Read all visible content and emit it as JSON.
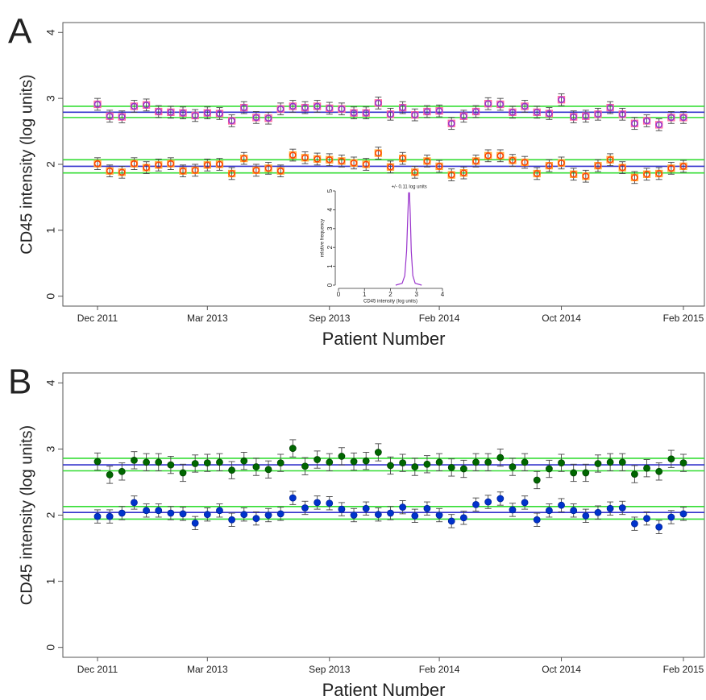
{
  "chart_data": [
    {
      "type": "errorbar",
      "panel_label": "A",
      "x_label": "Patient Number",
      "y_label": "CD45 intensity (log units)",
      "categories": [
        "Dec 2011",
        null,
        null,
        null,
        null,
        null,
        null,
        null,
        null,
        "Mar 2013",
        null,
        null,
        null,
        null,
        null,
        null,
        null,
        null,
        null,
        "Sep 2013",
        null,
        null,
        null,
        null,
        null,
        null,
        null,
        null,
        "Feb 2014",
        null,
        null,
        null,
        null,
        null,
        null,
        null,
        null,
        null,
        "Oct 2014",
        null,
        null,
        null,
        null,
        null,
        null,
        null,
        null,
        null,
        "Feb 2015"
      ],
      "ylim": [
        -0.15,
        4.15
      ],
      "yticks": [
        0,
        1,
        2,
        3,
        4
      ],
      "series": [
        {
          "color": "#9933cc",
          "edge_color": "#ff6699",
          "error": 0.09,
          "values": [
            2.91,
            2.73,
            2.72,
            2.88,
            2.9,
            2.8,
            2.79,
            2.78,
            2.74,
            2.78,
            2.77,
            2.66,
            2.86,
            2.71,
            2.7,
            2.84,
            2.88,
            2.86,
            2.88,
            2.85,
            2.84,
            2.78,
            2.78,
            2.93,
            2.76,
            2.86,
            2.75,
            2.8,
            2.81,
            2.62,
            2.73,
            2.8,
            2.92,
            2.91,
            2.79,
            2.88,
            2.79,
            2.77,
            2.98,
            2.72,
            2.73,
            2.76,
            2.86,
            2.76,
            2.62,
            2.66,
            2.6,
            2.71,
            2.71
          ]
        },
        {
          "color": "#ff4400",
          "edge_color": "#ffaa33",
          "error": 0.09,
          "values": [
            2.01,
            1.9,
            1.88,
            2.01,
            1.95,
            1.99,
            2.01,
            1.9,
            1.91,
            1.99,
            2.0,
            1.86,
            2.09,
            1.91,
            1.94,
            1.9,
            2.14,
            2.1,
            2.08,
            2.07,
            2.05,
            2.02,
            2.0,
            2.17,
            1.96,
            2.09,
            1.88,
            2.05,
            1.97,
            1.84,
            1.87,
            2.05,
            2.13,
            2.13,
            2.06,
            2.03,
            1.86,
            1.98,
            2.02,
            1.85,
            1.82,
            1.98,
            2.07,
            1.95,
            1.8,
            1.85,
            1.86,
            1.94,
            1.97
          ]
        }
      ],
      "hlines": [
        {
          "value": 2.88,
          "color": "#33dd33"
        },
        {
          "value": 2.79,
          "color": "#3333cc"
        },
        {
          "value": 2.71,
          "color": "#33dd33"
        },
        {
          "value": 2.07,
          "color": "#33dd33"
        },
        {
          "value": 1.97,
          "color": "#3333cc"
        },
        {
          "value": 1.87,
          "color": "#33dd33"
        }
      ],
      "inset": {
        "type": "line",
        "x_label": "CD45 intensity (log units)",
        "y_label": "relative frequency",
        "annotation": "+/- 0.11 log units",
        "xlim": [
          0,
          4
        ],
        "ylim": [
          0,
          5
        ],
        "xticks": [
          0,
          1,
          2,
          3,
          4
        ],
        "yticks": [
          0,
          1,
          2,
          3,
          4,
          5
        ],
        "color": "#9933cc",
        "x": [
          2.2,
          2.45,
          2.55,
          2.62,
          2.67,
          2.7,
          2.73,
          2.76,
          2.8,
          2.86,
          2.95,
          3.2
        ],
        "y": [
          0,
          0.1,
          0.5,
          1.8,
          3.8,
          4.9,
          4.9,
          3.8,
          1.8,
          0.5,
          0.1,
          0
        ]
      }
    },
    {
      "type": "errorbar",
      "panel_label": "B",
      "x_label": "Patient Number",
      "y_label": "CD45 intensity (log units)",
      "categories": [
        "Dec 2011",
        null,
        null,
        null,
        null,
        null,
        null,
        null,
        null,
        "Mar 2013",
        null,
        null,
        null,
        null,
        null,
        null,
        null,
        null,
        null,
        "Sep 2013",
        null,
        null,
        null,
        null,
        null,
        null,
        null,
        null,
        "Feb 2014",
        null,
        null,
        null,
        null,
        null,
        null,
        null,
        null,
        null,
        "Oct 2014",
        null,
        null,
        null,
        null,
        null,
        null,
        null,
        null,
        null,
        "Feb 2015"
      ],
      "ylim": [
        -0.15,
        4.15
      ],
      "yticks": [
        0,
        1,
        2,
        3,
        4
      ],
      "series": [
        {
          "color": "#006600",
          "edge_color": "#004400",
          "error": 0.13,
          "values": [
            2.81,
            2.61,
            2.66,
            2.83,
            2.8,
            2.8,
            2.76,
            2.64,
            2.78,
            2.79,
            2.8,
            2.68,
            2.82,
            2.73,
            2.69,
            2.79,
            3.01,
            2.74,
            2.84,
            2.8,
            2.89,
            2.81,
            2.82,
            2.95,
            2.75,
            2.79,
            2.73,
            2.77,
            2.8,
            2.72,
            2.7,
            2.8,
            2.8,
            2.87,
            2.73,
            2.8,
            2.53,
            2.7,
            2.79,
            2.64,
            2.64,
            2.78,
            2.8,
            2.8,
            2.62,
            2.71,
            2.66,
            2.85,
            2.79
          ]
        },
        {
          "color": "#0033cc",
          "edge_color": "#002299",
          "error": 0.1,
          "values": [
            1.98,
            1.98,
            2.03,
            2.19,
            2.07,
            2.07,
            2.03,
            2.02,
            1.88,
            2.01,
            2.07,
            1.93,
            2.01,
            1.95,
            2.0,
            2.02,
            2.26,
            2.11,
            2.19,
            2.18,
            2.09,
            2.0,
            2.1,
            2.01,
            2.03,
            2.12,
            1.99,
            2.1,
            2.0,
            1.91,
            1.96,
            2.16,
            2.2,
            2.25,
            2.08,
            2.19,
            1.93,
            2.07,
            2.15,
            2.07,
            1.99,
            2.04,
            2.1,
            2.11,
            1.87,
            1.95,
            1.82,
            1.97,
            2.02
          ]
        }
      ],
      "hlines": [
        {
          "value": 2.86,
          "color": "#33dd33"
        },
        {
          "value": 2.76,
          "color": "#3333cc"
        },
        {
          "value": 2.67,
          "color": "#33dd33"
        },
        {
          "value": 2.13,
          "color": "#33dd33"
        },
        {
          "value": 2.04,
          "color": "#3333cc"
        },
        {
          "value": 1.94,
          "color": "#33dd33"
        }
      ]
    }
  ]
}
